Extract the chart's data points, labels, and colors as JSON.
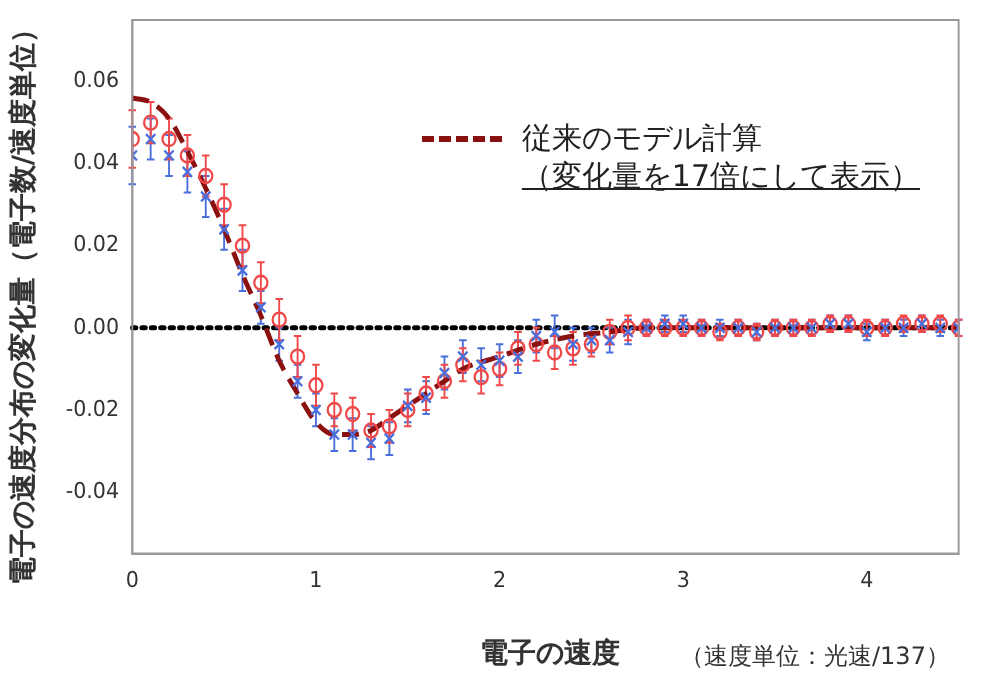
{
  "chart_data": {
    "type": "scatter",
    "xlabel": "電子の速度",
    "ylabel": "電子の速度分布の変化量（電子数/速度単位）",
    "x": [
      0,
      0.1,
      0.2,
      0.3,
      0.4,
      0.5,
      0.6,
      0.7,
      0.8,
      0.9,
      1,
      1.1,
      1.2,
      1.3,
      1.4,
      1.5,
      1.6,
      1.7,
      1.8,
      1.9,
      2,
      2.1,
      2.2,
      2.3,
      2.4,
      2.5,
      2.6,
      2.7,
      2.8,
      2.9,
      3,
      3.1,
      3.2,
      3.3,
      3.4,
      3.5,
      3.6,
      3.7,
      3.8,
      3.9,
      4,
      4.1,
      4.2,
      4.3,
      4.4,
      4.5
    ],
    "series": [
      {
        "color": "#4a6fdc",
        "marker": "cross",
        "values": [
          0.042,
          0.046,
          0.042,
          0.038,
          0.032,
          0.024,
          0.014,
          0.005,
          -0.004,
          -0.013,
          -0.02,
          -0.026,
          -0.026,
          -0.028,
          -0.027,
          -0.019,
          -0.017,
          -0.011,
          -0.007,
          -0.009,
          -0.008,
          -0.007,
          -0.002,
          -0.001,
          -0.004,
          -0.003,
          -0.003,
          -0.001,
          0.0,
          0.001,
          0.001,
          0.0,
          0.0,
          0.0,
          -0.001,
          0.0,
          0.0,
          0.0,
          0.001,
          0.001,
          -0.001,
          0.0,
          0.0,
          0.001,
          0.0,
          0.0
        ],
        "errors": [
          0.007,
          0.005,
          0.005,
          0.005,
          0.005,
          0.005,
          0.005,
          0.004,
          0.004,
          0.004,
          0.004,
          0.004,
          0.004,
          0.004,
          0.004,
          0.004,
          0.004,
          0.004,
          0.004,
          0.004,
          0.004,
          0.004,
          0.004,
          0.004,
          0.004,
          0.003,
          0.003,
          0.003,
          0.002,
          0.002,
          0.002,
          0.002,
          0.002,
          0.002,
          0.002,
          0.002,
          0.002,
          0.002,
          0.002,
          0.002,
          0.002,
          0.002,
          0.002,
          0.002,
          0.002,
          0.002
        ]
      },
      {
        "color": "#f04848",
        "marker": "circle",
        "values": [
          0.046,
          0.05,
          0.046,
          0.042,
          0.037,
          0.03,
          0.02,
          0.011,
          0.002,
          -0.007,
          -0.014,
          -0.02,
          -0.021,
          -0.025,
          -0.024,
          -0.02,
          -0.016,
          -0.013,
          -0.009,
          -0.012,
          -0.01,
          -0.005,
          -0.004,
          -0.006,
          -0.005,
          -0.004,
          -0.001,
          0.0,
          0.0,
          0.0,
          0.0,
          0.0,
          -0.001,
          0.0,
          -0.001,
          0.0,
          0.0,
          0.0,
          0.001,
          0.001,
          0.0,
          0.0,
          0.001,
          0.001,
          0.001,
          0.0
        ],
        "errors": [
          0.007,
          0.005,
          0.005,
          0.005,
          0.005,
          0.005,
          0.005,
          0.005,
          0.005,
          0.005,
          0.005,
          0.004,
          0.004,
          0.004,
          0.004,
          0.004,
          0.004,
          0.004,
          0.004,
          0.004,
          0.004,
          0.004,
          0.004,
          0.004,
          0.004,
          0.003,
          0.003,
          0.003,
          0.002,
          0.002,
          0.002,
          0.002,
          0.002,
          0.002,
          0.002,
          0.002,
          0.002,
          0.002,
          0.002,
          0.002,
          0.002,
          0.002,
          0.002,
          0.002,
          0.002,
          0.002
        ]
      },
      {
        "type": "line",
        "name": "従来のモデル計算",
        "color": "#8b1010",
        "marker": "none",
        "line_style": "dashed",
        "x": [
          0,
          0.1,
          0.2,
          0.3,
          0.4,
          0.5,
          0.6,
          0.7,
          0.8,
          0.9,
          1,
          1.1,
          1.2,
          1.3,
          1.4,
          1.5,
          1.6,
          1.7,
          1.8,
          2,
          2.2,
          2.4,
          2.6,
          2.8,
          4.5
        ],
        "values": [
          0.056,
          0.055,
          0.051,
          0.043,
          0.034,
          0.024,
          0.013,
          0.003,
          -0.008,
          -0.016,
          -0.023,
          -0.026,
          -0.026,
          -0.025,
          -0.022,
          -0.019,
          -0.016,
          -0.013,
          -0.01,
          -0.007,
          -0.004,
          -0.002,
          -0.001,
          0,
          0
        ]
      }
    ],
    "ref_lines": [
      {
        "axis": "y",
        "value": 0,
        "color": "#000000",
        "line_style": "dotted"
      }
    ],
    "xlim": [
      0,
      4.5
    ],
    "xticks": [
      0,
      1,
      2,
      3,
      4
    ],
    "ylim": [
      -0.055,
      0.075
    ],
    "yticks": [
      -0.04,
      -0.02,
      {
        "value": 0,
        "label": "0.00"
      },
      0.02,
      0.04,
      0.06
    ],
    "grid": false,
    "legend": "top right",
    "annotations": [
      "（変化量を17倍にして表示）",
      "（速度単位：光速/137）"
    ]
  }
}
